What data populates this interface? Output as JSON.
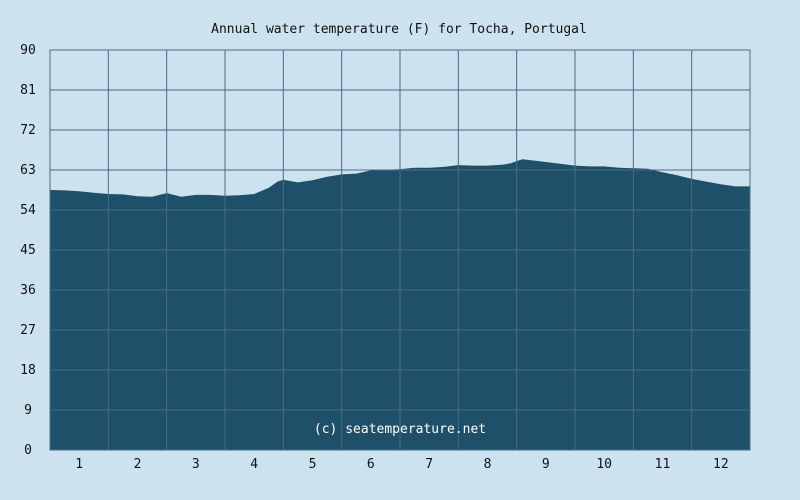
{
  "chart_data": {
    "type": "area",
    "title": "Annual water temperature (F) for Tocha, Portugal",
    "xlabel": "",
    "ylabel": "",
    "ylim": [
      0,
      90
    ],
    "yticks": [
      0,
      9,
      18,
      27,
      36,
      45,
      54,
      63,
      72,
      81,
      90
    ],
    "xticks": [
      1,
      2,
      3,
      4,
      5,
      6,
      7,
      8,
      9,
      10,
      11,
      12
    ],
    "xlim": [
      0.5,
      12.5
    ],
    "grid": true,
    "watermark": "(c) seatemperature.net",
    "x": [
      0.5,
      0.75,
      1.0,
      1.25,
      1.5,
      1.75,
      2.0,
      2.25,
      2.5,
      2.75,
      3.0,
      3.25,
      3.5,
      3.75,
      4.0,
      4.25,
      4.4,
      4.5,
      4.75,
      5.0,
      5.25,
      5.5,
      5.75,
      6.0,
      6.25,
      6.5,
      6.75,
      7.0,
      7.25,
      7.5,
      7.75,
      8.0,
      8.25,
      8.4,
      8.5,
      8.6,
      8.75,
      9.0,
      9.25,
      9.5,
      9.75,
      10.0,
      10.25,
      10.5,
      10.75,
      11.0,
      11.25,
      11.5,
      11.75,
      12.0,
      12.25,
      12.5
    ],
    "values": [
      58.5,
      58.4,
      58.2,
      57.9,
      57.6,
      57.5,
      57.1,
      57.0,
      57.8,
      57.0,
      57.4,
      57.4,
      57.2,
      57.3,
      57.6,
      59.0,
      60.4,
      60.8,
      60.2,
      60.7,
      61.5,
      62.0,
      62.2,
      62.9,
      63.0,
      63.2,
      63.5,
      63.5,
      63.7,
      64.1,
      64.0,
      64.0,
      64.2,
      64.5,
      65.0,
      65.4,
      65.2,
      64.8,
      64.4,
      64.0,
      63.8,
      63.8,
      63.5,
      63.4,
      63.3,
      62.5,
      61.8,
      61.0,
      60.4,
      59.8,
      59.3,
      59.3
    ],
    "colors": {
      "background": "#cce3ef",
      "plot_background": "#cce3ef",
      "area_fill": "#1e5069",
      "grid": "#4a6b80",
      "border": "#4a6b80"
    }
  }
}
